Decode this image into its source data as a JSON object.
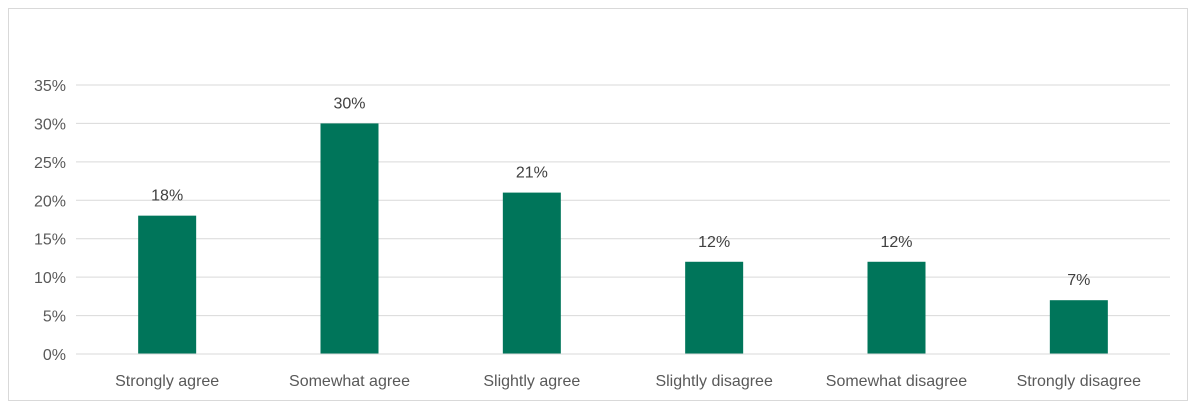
{
  "chart_data": {
    "type": "bar",
    "categories": [
      "Strongly agree",
      "Somewhat agree",
      "Slightly agree",
      "Slightly disagree",
      "Somewhat disagree",
      "Strongly disagree"
    ],
    "values": [
      18,
      30,
      21,
      12,
      12,
      7
    ],
    "data_labels": [
      "18%",
      "30%",
      "21%",
      "12%",
      "12%",
      "7%"
    ],
    "y_ticks": [
      0,
      5,
      10,
      15,
      20,
      25,
      30,
      35
    ],
    "y_tick_labels": [
      "0%",
      "5%",
      "10%",
      "15%",
      "20%",
      "25%",
      "30%",
      "35%"
    ],
    "ylim": [
      0,
      35
    ],
    "title": "",
    "xlabel": "",
    "ylabel": "",
    "grid": true,
    "legend": "none",
    "bar_color": "#00755A",
    "grid_color": "#D9D9D9"
  }
}
